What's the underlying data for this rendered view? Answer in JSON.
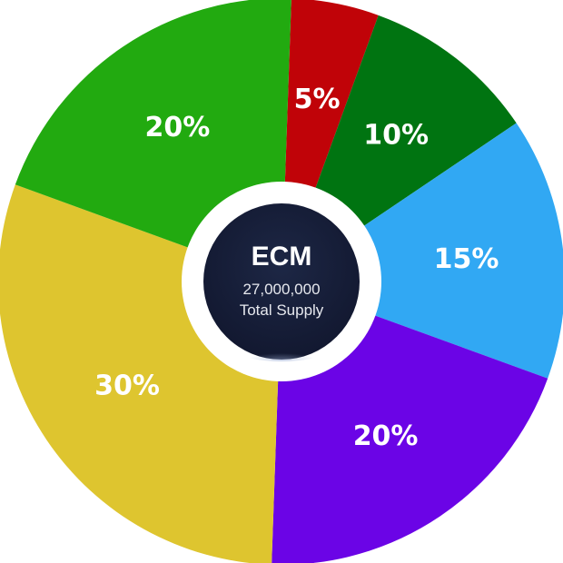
{
  "chart_data": {
    "type": "pie",
    "variant": "donut",
    "center": {
      "title": "ECM",
      "value": "27,000,000",
      "caption": "Total Supply"
    },
    "slices": [
      {
        "value": 5,
        "label": "5%",
        "color": "#c00308"
      },
      {
        "value": 10,
        "label": "10%",
        "color": "#007411"
      },
      {
        "value": 15,
        "label": "15%",
        "color": "#31a8f3"
      },
      {
        "value": 20,
        "label": "20%",
        "color": "#6b04e6"
      },
      {
        "value": 30,
        "label": "30%",
        "color": "#dec52f"
      },
      {
        "value": 20,
        "label": "20%",
        "color": "#22aa10"
      }
    ],
    "start_angle_deg": 2,
    "direction": "clockwise",
    "legend": "none",
    "center_badge_color": "#151c33"
  }
}
